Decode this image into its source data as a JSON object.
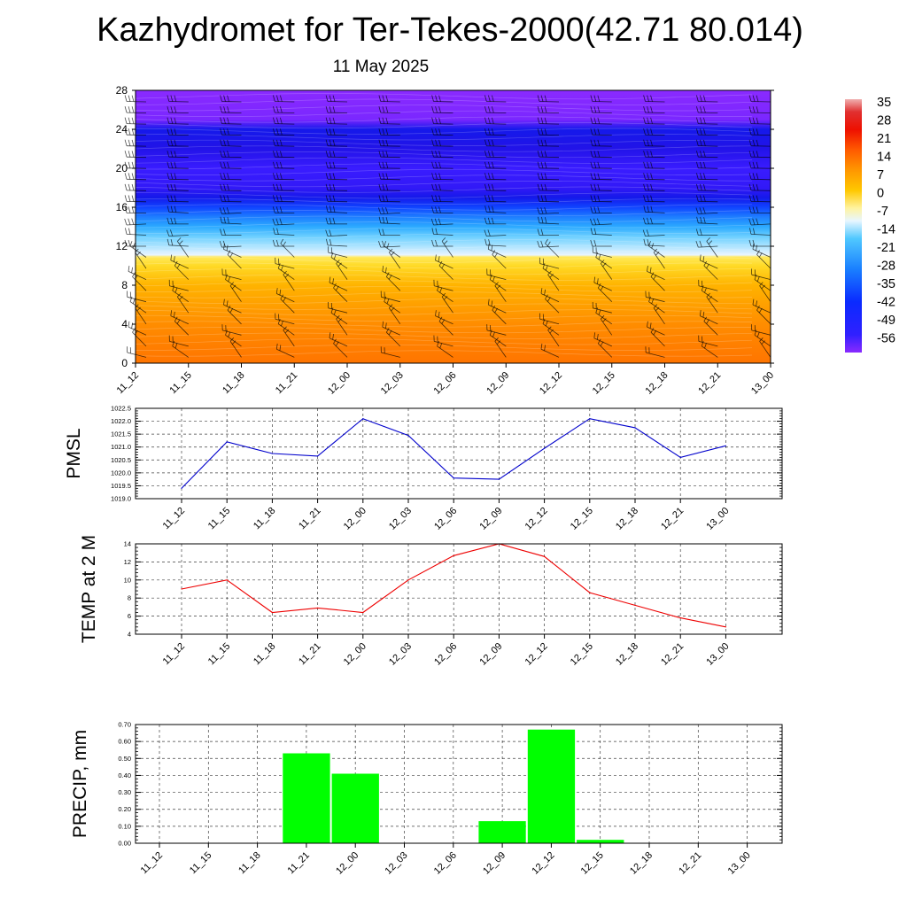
{
  "header": {
    "title": "Kazhydromet for Ter-Tekes-2000(42.71 80.014)",
    "subtitle": "11 May 2025"
  },
  "chart_data": [
    {
      "type": "heatmap",
      "title": "",
      "xlabel": "",
      "ylabel": "",
      "x_ticks": [
        "11_12",
        "11_15",
        "11_18",
        "11_21",
        "12_00",
        "12_03",
        "12_06",
        "12_09",
        "12_12",
        "12_15",
        "12_18",
        "12_21",
        "13_00"
      ],
      "y_ticks": [
        0,
        4,
        8,
        12,
        16,
        20,
        24,
        28
      ],
      "ylim": [
        0,
        28
      ],
      "temperature_profile": [
        {
          "y": 0,
          "t": 12
        },
        {
          "y": 2,
          "t": 10
        },
        {
          "y": 4,
          "t": 8
        },
        {
          "y": 6,
          "t": 5
        },
        {
          "y": 8,
          "t": 2
        },
        {
          "y": 10,
          "t": -4
        },
        {
          "y": 10.9,
          "t": -7
        },
        {
          "y": 11.1,
          "t": -16
        },
        {
          "y": 12,
          "t": -20
        },
        {
          "y": 13,
          "t": -25
        },
        {
          "y": 14,
          "t": -32
        },
        {
          "y": 15,
          "t": -38
        },
        {
          "y": 16,
          "t": -45
        },
        {
          "y": 17,
          "t": -52
        },
        {
          "y": 18,
          "t": -57
        },
        {
          "y": 20,
          "t": -58
        },
        {
          "y": 22,
          "t": -55
        },
        {
          "y": 24,
          "t": -52
        },
        {
          "y": 25,
          "t": -62
        },
        {
          "y": 28,
          "t": -63
        }
      ],
      "colorbar_labels": [
        "35",
        "28",
        "21",
        "14",
        "7",
        "0",
        "-7",
        "-14",
        "-21",
        "-28",
        "-35",
        "-42",
        "-49",
        "-56"
      ],
      "colors": {
        "warm": "#ff6a00",
        "orange": "#ffa000",
        "yellow": "#fff060",
        "pale": "#e8f4ff",
        "cyan": "#30b8ff",
        "blue": "#0a2aff",
        "deep_blue": "#1a10e0",
        "violet": "#8a2aff",
        "red": "#e00000"
      },
      "wind_barbs": true
    },
    {
      "type": "line",
      "ylabel": "PMSL",
      "categories": [
        "11_12",
        "11_15",
        "11_18",
        "11_21",
        "12_00",
        "12_03",
        "12_06",
        "12_09",
        "12_12",
        "12_15",
        "12_18",
        "12_21",
        "13_00"
      ],
      "series": [
        {
          "values": [
            1019.4,
            1021.2,
            1020.75,
            1020.65,
            1022.1,
            1021.45,
            1019.8,
            1019.75,
            1020.95,
            1022.1,
            1021.75,
            1020.6,
            1021.05
          ]
        }
      ],
      "ylim": [
        1019.0,
        1022.5
      ],
      "yticks": [
        "1019.0",
        "1019.5",
        "1020.0",
        "1020.5",
        "1021.0",
        "1021.5",
        "1022.0",
        "1022.5"
      ],
      "color": "#0000cc",
      "grid": true
    },
    {
      "type": "line",
      "ylabel": "TEMP at 2 M",
      "categories": [
        "11_12",
        "11_15",
        "11_18",
        "11_21",
        "12_00",
        "12_03",
        "12_06",
        "12_09",
        "12_12",
        "12_15",
        "12_18",
        "12_21",
        "13_00"
      ],
      "series": [
        {
          "values": [
            9.0,
            10.0,
            6.4,
            6.9,
            6.4,
            10.0,
            12.7,
            14.0,
            12.6,
            8.6,
            7.2,
            5.8,
            4.8
          ]
        }
      ],
      "ylim": [
        4,
        14
      ],
      "yticks": [
        "4",
        "6",
        "8",
        "10",
        "12",
        "14"
      ],
      "color": "#ee0000",
      "grid": true
    },
    {
      "type": "bar",
      "ylabel": "PRECIP, mm",
      "categories": [
        "11_12",
        "11_15",
        "11_18",
        "11_21",
        "12_00",
        "12_03",
        "12_06",
        "12_09",
        "12_12",
        "12_15",
        "12_18",
        "12_21",
        "13_00"
      ],
      "values": [
        0,
        0,
        0,
        0.53,
        0.41,
        0,
        0,
        0.13,
        0.67,
        0.02,
        0,
        0,
        0
      ],
      "ylim": [
        0,
        0.7
      ],
      "yticks": [
        "0.00",
        "0.10",
        "0.20",
        "0.30",
        "0.40",
        "0.50",
        "0.60",
        "0.70"
      ],
      "color": "#00ff00",
      "grid": true
    }
  ]
}
